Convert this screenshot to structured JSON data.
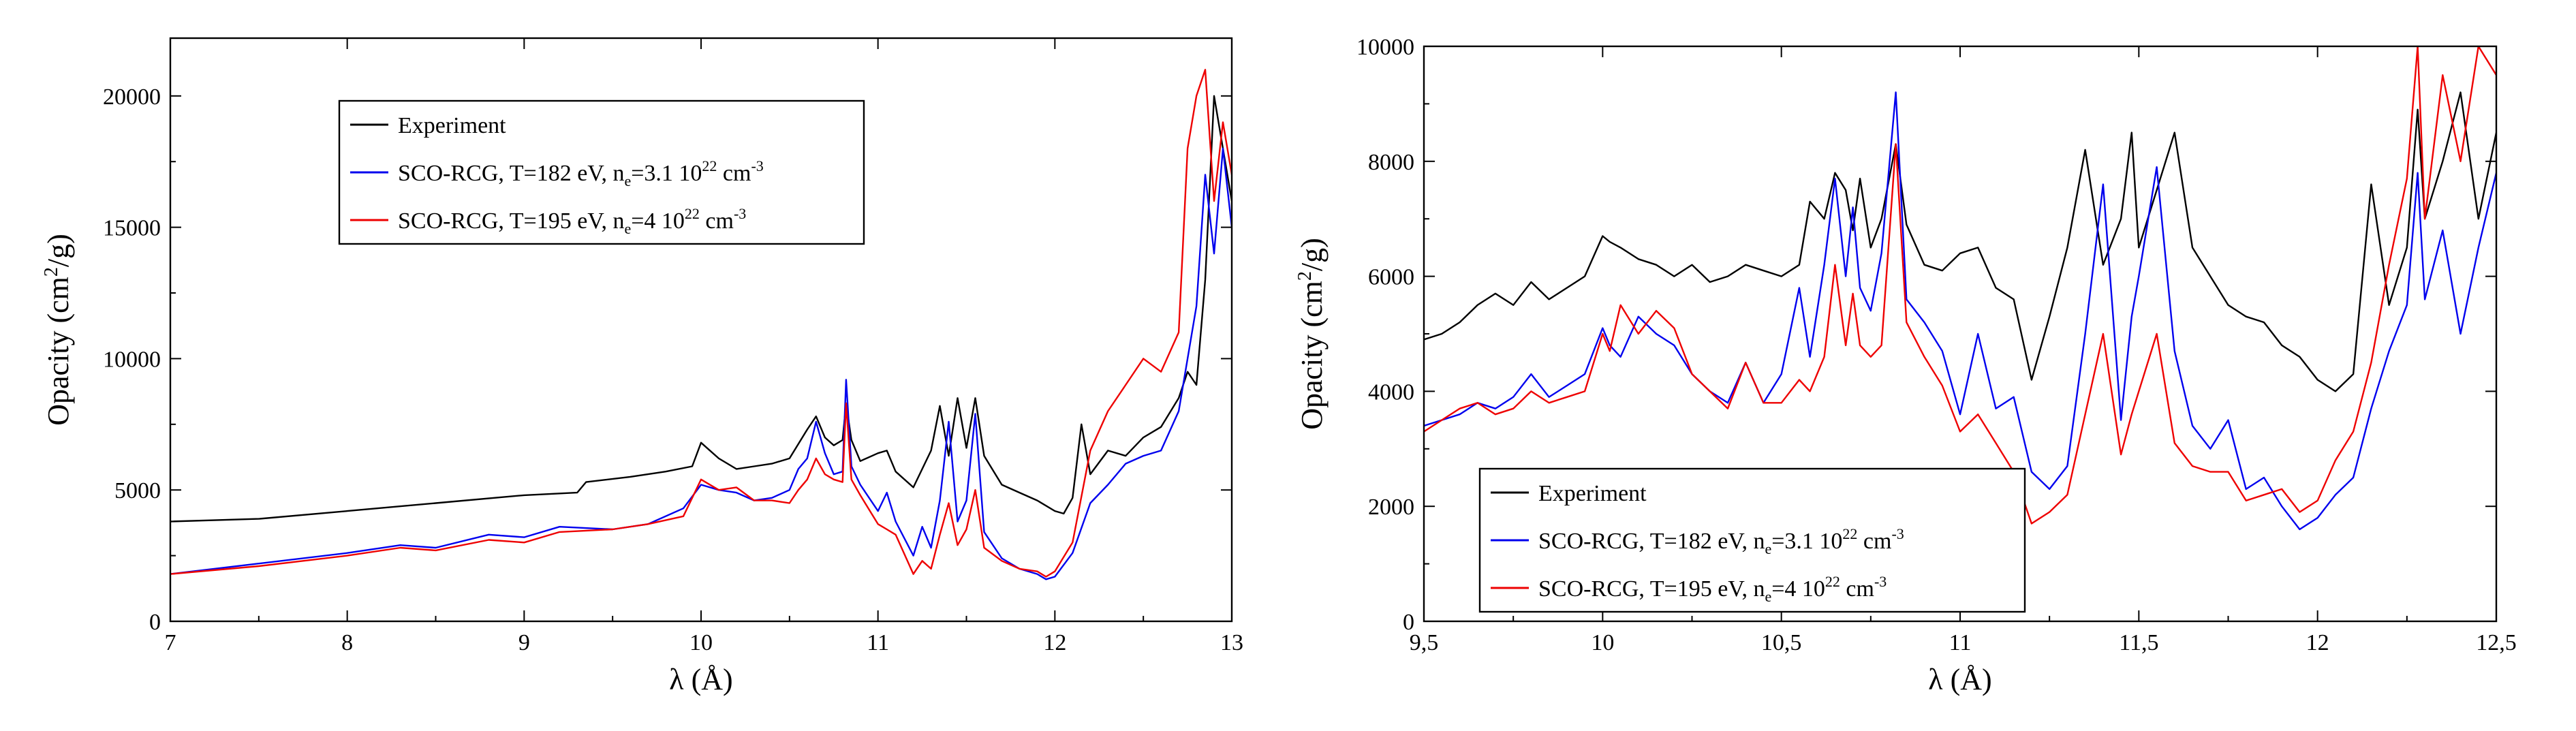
{
  "chart_data": [
    {
      "type": "line",
      "xlabel": "λ (Å)",
      "ylabel_parts": [
        "Opacity (cm",
        "2",
        "/g)"
      ],
      "xlim": [
        7,
        13
      ],
      "ylim": [
        0,
        22200
      ],
      "xticks": [
        7,
        8,
        9,
        10,
        11,
        12,
        13
      ],
      "xtick_labels": [
        "7",
        "8",
        "9",
        "10",
        "11",
        "12",
        "13"
      ],
      "yticks": [
        0,
        5000,
        10000,
        15000,
        20000
      ],
      "ytick_labels": [
        "0",
        "5000",
        "10000",
        "15000",
        "20000"
      ],
      "legend_position": "upper-left",
      "legend": [
        {
          "color": "#000000",
          "parts": [
            {
              "t": "Experiment",
              "s": ""
            }
          ]
        },
        {
          "color": "#0000ee",
          "parts": [
            {
              "t": "SCO-RCG, T=182 eV, n",
              "s": ""
            },
            {
              "t": "e",
              "s": "sub"
            },
            {
              "t": "=3.1 10",
              "s": ""
            },
            {
              "t": "22",
              "s": "sup"
            },
            {
              "t": " cm",
              "s": ""
            },
            {
              "t": "-3",
              "s": "sup"
            }
          ]
        },
        {
          "color": "#ee0000",
          "parts": [
            {
              "t": "SCO-RCG, T=195 eV, n",
              "s": ""
            },
            {
              "t": "e",
              "s": "sub"
            },
            {
              "t": "=4 10",
              "s": ""
            },
            {
              "t": "22",
              "s": "sup"
            },
            {
              "t": " cm",
              "s": ""
            },
            {
              "t": "-3",
              "s": "sup"
            }
          ]
        }
      ],
      "series": [
        {
          "name": "Experiment",
          "color": "#000000",
          "x": [
            7.0,
            7.5,
            8.0,
            8.5,
            9.0,
            9.3,
            9.35,
            9.6,
            9.8,
            9.95,
            10.0,
            10.1,
            10.2,
            10.3,
            10.4,
            10.5,
            10.6,
            10.65,
            10.7,
            10.75,
            10.8,
            10.82,
            10.85,
            10.9,
            11.0,
            11.05,
            11.1,
            11.2,
            11.3,
            11.35,
            11.4,
            11.45,
            11.5,
            11.55,
            11.6,
            11.7,
            11.8,
            11.9,
            12.0,
            12.05,
            12.1,
            12.15,
            12.2,
            12.3,
            12.4,
            12.5,
            12.6,
            12.7,
            12.75,
            12.8,
            12.85,
            12.9,
            12.95,
            13.0
          ],
          "y": [
            3800,
            3900,
            4200,
            4500,
            4800,
            4900,
            5300,
            5500,
            5700,
            5900,
            6800,
            6200,
            5800,
            5900,
            6000,
            6200,
            7300,
            7800,
            7000,
            6700,
            6900,
            8300,
            6900,
            6100,
            6400,
            6500,
            5700,
            5100,
            6500,
            8200,
            6300,
            8500,
            6600,
            8500,
            6300,
            5200,
            4900,
            4600,
            4200,
            4100,
            4700,
            7500,
            5600,
            6500,
            6300,
            7000,
            7400,
            8500,
            9500,
            9000,
            13000,
            20000,
            18000,
            16000
          ]
        },
        {
          "name": "SCO-RCG, T=182 eV, ne=3.1 1022 cm-3",
          "color": "#0000ee",
          "x": [
            7.0,
            7.5,
            8.0,
            8.3,
            8.5,
            8.8,
            9.0,
            9.2,
            9.5,
            9.7,
            9.9,
            10.0,
            10.1,
            10.2,
            10.3,
            10.4,
            10.5,
            10.55,
            10.6,
            10.65,
            10.7,
            10.75,
            10.8,
            10.82,
            10.85,
            10.9,
            11.0,
            11.05,
            11.1,
            11.2,
            11.25,
            11.3,
            11.35,
            11.4,
            11.45,
            11.5,
            11.55,
            11.6,
            11.7,
            11.8,
            11.9,
            11.95,
            12.0,
            12.1,
            12.2,
            12.3,
            12.4,
            12.5,
            12.6,
            12.7,
            12.75,
            12.8,
            12.85,
            12.9,
            12.95,
            13.0
          ],
          "y": [
            1800,
            2200,
            2600,
            2900,
            2800,
            3300,
            3200,
            3600,
            3500,
            3700,
            4300,
            5200,
            5000,
            4900,
            4600,
            4700,
            5000,
            5800,
            6200,
            7600,
            6400,
            5600,
            5700,
            9200,
            5900,
            5200,
            4200,
            4900,
            3800,
            2500,
            3600,
            2800,
            4600,
            7600,
            3800,
            4600,
            7900,
            3400,
            2400,
            2000,
            1800,
            1600,
            1700,
            2600,
            4500,
            5200,
            6000,
            6300,
            6500,
            8000,
            10000,
            12000,
            17000,
            14000,
            18000,
            15000
          ]
        },
        {
          "name": "SCO-RCG, T=195 eV, ne=4 1022 cm-3",
          "color": "#ee0000",
          "x": [
            7.0,
            7.5,
            8.0,
            8.3,
            8.5,
            8.8,
            9.0,
            9.2,
            9.5,
            9.7,
            9.9,
            10.0,
            10.1,
            10.2,
            10.3,
            10.4,
            10.5,
            10.55,
            10.6,
            10.65,
            10.7,
            10.75,
            10.8,
            10.82,
            10.85,
            10.9,
            11.0,
            11.05,
            11.1,
            11.2,
            11.25,
            11.3,
            11.35,
            11.4,
            11.45,
            11.5,
            11.55,
            11.6,
            11.7,
            11.8,
            11.9,
            11.95,
            12.0,
            12.1,
            12.2,
            12.3,
            12.4,
            12.5,
            12.6,
            12.7,
            12.75,
            12.8,
            12.85,
            12.9,
            12.95,
            13.0
          ],
          "y": [
            1800,
            2100,
            2500,
            2800,
            2700,
            3100,
            3000,
            3400,
            3500,
            3700,
            4000,
            5400,
            5000,
            5100,
            4600,
            4600,
            4500,
            5000,
            5400,
            6200,
            5600,
            5400,
            5300,
            8300,
            5400,
            4800,
            3700,
            3500,
            3300,
            1800,
            2300,
            2000,
            3300,
            4500,
            2900,
            3500,
            5000,
            2800,
            2300,
            2000,
            1900,
            1700,
            1900,
            3000,
            6500,
            8000,
            9000,
            10000,
            9500,
            11000,
            18000,
            20000,
            21000,
            16000,
            19000,
            17000
          ]
        }
      ]
    },
    {
      "type": "line",
      "xlabel": "λ (Å)",
      "ylabel_parts": [
        "Opacity (cm",
        "2",
        "/g)"
      ],
      "xlim": [
        9.5,
        12.5
      ],
      "ylim": [
        0,
        10000
      ],
      "xticks": [
        9.5,
        10,
        10.5,
        11,
        11.5,
        12,
        12.5
      ],
      "xtick_labels": [
        "9,5",
        "10",
        "10,5",
        "11",
        "11,5",
        "12",
        "12,5"
      ],
      "yticks": [
        0,
        2000,
        4000,
        6000,
        8000,
        10000
      ],
      "ytick_labels": [
        "0",
        "2000",
        "4000",
        "6000",
        "8000",
        "10000"
      ],
      "legend_position": "lower-left",
      "legend": [
        {
          "color": "#000000",
          "parts": [
            {
              "t": "Experiment",
              "s": ""
            }
          ]
        },
        {
          "color": "#0000ee",
          "parts": [
            {
              "t": "SCO-RCG, T=182 eV, n",
              "s": ""
            },
            {
              "t": "e",
              "s": "sub"
            },
            {
              "t": "=3.1 10",
              "s": ""
            },
            {
              "t": "22",
              "s": "sup"
            },
            {
              "t": " cm",
              "s": ""
            },
            {
              "t": "-3",
              "s": "sup"
            }
          ]
        },
        {
          "color": "#ee0000",
          "parts": [
            {
              "t": "SCO-RCG, T=195 eV, n",
              "s": ""
            },
            {
              "t": "e",
              "s": "sub"
            },
            {
              "t": "=4 10",
              "s": ""
            },
            {
              "t": "22",
              "s": "sup"
            },
            {
              "t": " cm",
              "s": ""
            },
            {
              "t": "-3",
              "s": "sup"
            }
          ]
        }
      ],
      "series": [
        {
          "name": "Experiment",
          "color": "#000000",
          "x": [
            9.5,
            9.55,
            9.6,
            9.65,
            9.7,
            9.75,
            9.8,
            9.85,
            9.9,
            9.95,
            10.0,
            10.02,
            10.05,
            10.1,
            10.15,
            10.2,
            10.25,
            10.3,
            10.35,
            10.4,
            10.45,
            10.5,
            10.55,
            10.58,
            10.62,
            10.65,
            10.68,
            10.7,
            10.72,
            10.75,
            10.78,
            10.82,
            10.85,
            10.9,
            10.95,
            11.0,
            11.05,
            11.1,
            11.15,
            11.2,
            11.25,
            11.3,
            11.35,
            11.4,
            11.45,
            11.48,
            11.5,
            11.55,
            11.6,
            11.65,
            11.7,
            11.75,
            11.8,
            11.85,
            11.9,
            11.95,
            12.0,
            12.05,
            12.1,
            12.15,
            12.2,
            12.25,
            12.28,
            12.3,
            12.35,
            12.4,
            12.45,
            12.5
          ],
          "y": [
            4900,
            5000,
            5200,
            5500,
            5700,
            5500,
            5900,
            5600,
            5800,
            6000,
            6700,
            6600,
            6500,
            6300,
            6200,
            6000,
            6200,
            5900,
            6000,
            6200,
            6100,
            6000,
            6200,
            7300,
            7000,
            7800,
            7500,
            6800,
            7700,
            6500,
            7000,
            8300,
            6900,
            6200,
            6100,
            6400,
            6500,
            5800,
            5600,
            4200,
            5300,
            6500,
            8200,
            6200,
            7000,
            8500,
            6500,
            7500,
            8500,
            6500,
            6000,
            5500,
            5300,
            5200,
            4800,
            4600,
            4200,
            4000,
            4300,
            7600,
            5500,
            6500,
            8900,
            7000,
            8000,
            9200,
            7000,
            8500
          ]
        },
        {
          "name": "SCO-RCG, T=182 eV, ne=3.1 1022 cm-3",
          "color": "#0000ee",
          "x": [
            9.5,
            9.55,
            9.6,
            9.65,
            9.7,
            9.75,
            9.8,
            9.85,
            9.9,
            9.95,
            10.0,
            10.02,
            10.05,
            10.1,
            10.15,
            10.2,
            10.25,
            10.3,
            10.35,
            10.4,
            10.45,
            10.5,
            10.55,
            10.58,
            10.62,
            10.65,
            10.68,
            10.7,
            10.72,
            10.75,
            10.78,
            10.82,
            10.85,
            10.9,
            10.95,
            11.0,
            11.05,
            11.1,
            11.15,
            11.2,
            11.25,
            11.3,
            11.35,
            11.4,
            11.45,
            11.48,
            11.5,
            11.55,
            11.6,
            11.65,
            11.7,
            11.75,
            11.8,
            11.85,
            11.9,
            11.95,
            12.0,
            12.05,
            12.1,
            12.15,
            12.2,
            12.25,
            12.28,
            12.3,
            12.35,
            12.4,
            12.45,
            12.5
          ],
          "y": [
            3400,
            3500,
            3600,
            3800,
            3700,
            3900,
            4300,
            3900,
            4100,
            4300,
            5100,
            4800,
            4600,
            5300,
            5000,
            4800,
            4300,
            4000,
            3800,
            4500,
            3800,
            4300,
            5800,
            4600,
            6200,
            7700,
            6000,
            7200,
            5800,
            5400,
            6400,
            9200,
            5600,
            5200,
            4700,
            3600,
            5000,
            3700,
            3900,
            2600,
            2300,
            2700,
            5000,
            7600,
            3500,
            5300,
            6000,
            7900,
            4700,
            3400,
            3000,
            3500,
            2300,
            2500,
            2000,
            1600,
            1800,
            2200,
            2500,
            3700,
            4700,
            5500,
            7800,
            5600,
            6800,
            5000,
            6500,
            7800
          ]
        },
        {
          "name": "SCO-RCG, T=195 eV, ne=4 1022 cm-3",
          "color": "#ee0000",
          "x": [
            9.5,
            9.55,
            9.6,
            9.65,
            9.7,
            9.75,
            9.8,
            9.85,
            9.9,
            9.95,
            10.0,
            10.02,
            10.05,
            10.1,
            10.15,
            10.2,
            10.25,
            10.3,
            10.35,
            10.4,
            10.45,
            10.5,
            10.55,
            10.58,
            10.62,
            10.65,
            10.68,
            10.7,
            10.72,
            10.75,
            10.78,
            10.82,
            10.85,
            10.9,
            10.95,
            11.0,
            11.05,
            11.1,
            11.15,
            11.2,
            11.25,
            11.3,
            11.35,
            11.4,
            11.45,
            11.48,
            11.5,
            11.55,
            11.6,
            11.65,
            11.7,
            11.75,
            11.8,
            11.85,
            11.9,
            11.95,
            12.0,
            12.05,
            12.1,
            12.15,
            12.2,
            12.25,
            12.28,
            12.3,
            12.35,
            12.4,
            12.45,
            12.5
          ],
          "y": [
            3300,
            3500,
            3700,
            3800,
            3600,
            3700,
            4000,
            3800,
            3900,
            4000,
            5000,
            4700,
            5500,
            5000,
            5400,
            5100,
            4300,
            4000,
            3700,
            4500,
            3800,
            3800,
            4200,
            4000,
            4600,
            6200,
            4800,
            5700,
            4800,
            4600,
            4800,
            8300,
            5200,
            4600,
            4100,
            3300,
            3600,
            3100,
            2600,
            1700,
            1900,
            2200,
            3600,
            5000,
            2900,
            3600,
            4000,
            5000,
            3100,
            2700,
            2600,
            2600,
            2100,
            2200,
            2300,
            1900,
            2100,
            2800,
            3300,
            4500,
            6200,
            7700,
            10000,
            7000,
            9500,
            8000,
            10000,
            9500
          ]
        }
      ]
    }
  ]
}
